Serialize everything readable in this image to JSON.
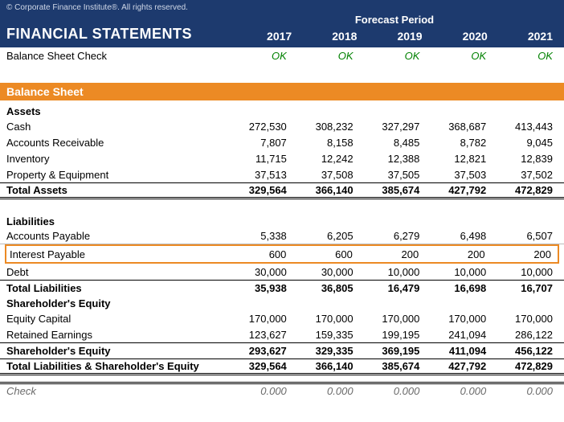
{
  "copyright": "© Corporate Finance Institute®. All rights reserved.",
  "title": "FINANCIAL STATEMENTS",
  "forecast_label": "Forecast Period",
  "years": [
    "2017",
    "2018",
    "2019",
    "2020",
    "2021"
  ],
  "bsc": {
    "label": "Balance Sheet Check",
    "vals": [
      "OK",
      "OK",
      "OK",
      "OK",
      "OK"
    ]
  },
  "section": "Balance Sheet",
  "assets_head": "Assets",
  "assets": [
    {
      "label": "Cash",
      "vals": [
        "272,530",
        "308,232",
        "327,297",
        "368,687",
        "413,443"
      ]
    },
    {
      "label": "Accounts Receivable",
      "vals": [
        "7,807",
        "8,158",
        "8,485",
        "8,782",
        "9,045"
      ]
    },
    {
      "label": "Inventory",
      "vals": [
        "11,715",
        "12,242",
        "12,388",
        "12,821",
        "12,839"
      ]
    },
    {
      "label": "Property & Equipment",
      "vals": [
        "37,513",
        "37,508",
        "37,505",
        "37,503",
        "37,502"
      ]
    }
  ],
  "total_assets": {
    "label": "Total Assets",
    "vals": [
      "329,564",
      "366,140",
      "385,674",
      "427,792",
      "472,829"
    ]
  },
  "liab_head": "Liabilities",
  "ap": {
    "label": "Accounts Payable",
    "vals": [
      "5,338",
      "6,205",
      "6,279",
      "6,498",
      "6,507"
    ]
  },
  "ip": {
    "label": "Interest Payable",
    "vals": [
      "600",
      "600",
      "200",
      "200",
      "200"
    ]
  },
  "debt": {
    "label": "Debt",
    "vals": [
      "30,000",
      "30,000",
      "10,000",
      "10,000",
      "10,000"
    ]
  },
  "total_liab": {
    "label": "Total Liabilities",
    "vals": [
      "35,938",
      "36,805",
      "16,479",
      "16,698",
      "16,707"
    ]
  },
  "eq_head": "Shareholder's Equity",
  "eq_cap": {
    "label": "Equity Capital",
    "vals": [
      "170,000",
      "170,000",
      "170,000",
      "170,000",
      "170,000"
    ]
  },
  "re": {
    "label": "Retained Earnings",
    "vals": [
      "123,627",
      "159,335",
      "199,195",
      "241,094",
      "286,122"
    ]
  },
  "sh_eq": {
    "label": "Shareholder's Equity",
    "vals": [
      "293,627",
      "329,335",
      "369,195",
      "411,094",
      "456,122"
    ]
  },
  "tl_se": {
    "label": "Total Liabilities & Shareholder's Equity",
    "vals": [
      "329,564",
      "366,140",
      "385,674",
      "427,792",
      "472,829"
    ]
  },
  "check": {
    "label": "Check",
    "vals": [
      "0.000",
      "0.000",
      "0.000",
      "0.000",
      "0.000"
    ]
  },
  "colors": {
    "header_bg": "#1d3a6e",
    "section_bg": "#ec8a24",
    "ok_color": "#008000",
    "highlight_border": "#ec8a24"
  }
}
